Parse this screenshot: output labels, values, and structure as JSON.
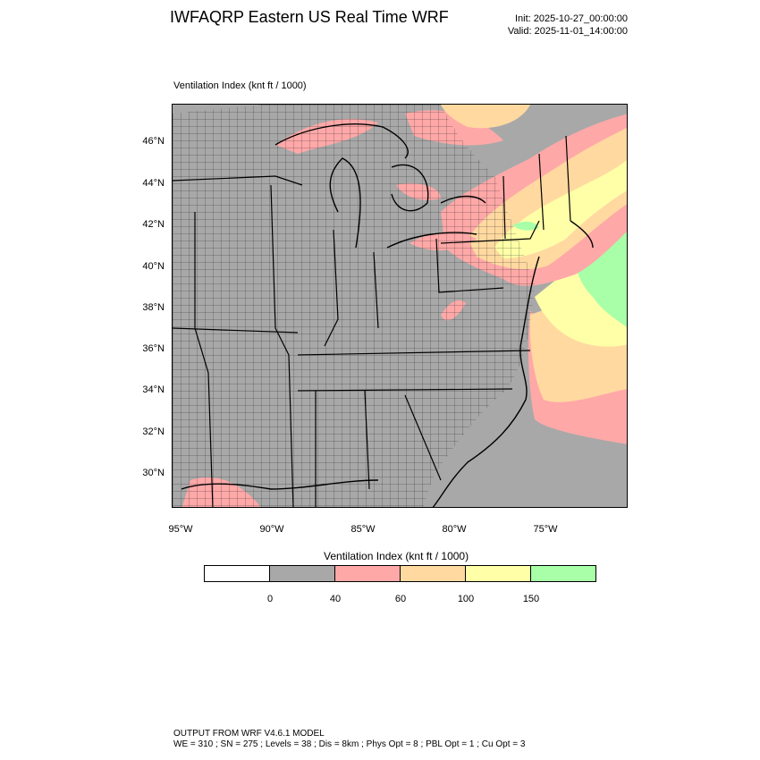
{
  "header": {
    "title": "IWFAQRP Eastern US Real Time WRF",
    "init": "Init: 2025-10-27_00:00:00",
    "valid": "Valid: 2025-11-01_14:00:00"
  },
  "plot": {
    "field_label": "Ventilation Index   (knt ft / 1000)",
    "lat_ticks": [
      "46°N",
      "44°N",
      "42°N",
      "40°N",
      "38°N",
      "36°N",
      "34°N",
      "32°N",
      "30°N"
    ],
    "lon_ticks": [
      "95°W",
      "90°W",
      "85°W",
      "80°W",
      "75°W"
    ]
  },
  "legend": {
    "title": "Ventilation Index  (knt ft / 1000)",
    "ticks": [
      "0",
      "40",
      "60",
      "100",
      "150"
    ],
    "colors": [
      "#ffffff",
      "#a8a8a8",
      "#ffa8a8",
      "#ffd9a0",
      "#ffffa8",
      "#a8ffa8"
    ]
  },
  "colors": {
    "land_low": "#a8a8a8",
    "water_low": "#a8a8a8",
    "band_40_60": "#ffa8a8",
    "band_60_100": "#ffd9a0",
    "band_100_150": "#ffffa8",
    "band_150_plus": "#a8ffa8"
  },
  "footer": {
    "line1": "OUTPUT FROM WRF V4.6.1 MODEL",
    "line2": "WE = 310 ; SN = 275 ; Levels = 38 ; Dis = 8km ; Phys Opt = 8 ; PBL Opt = 1 ; Cu Opt = 3"
  }
}
